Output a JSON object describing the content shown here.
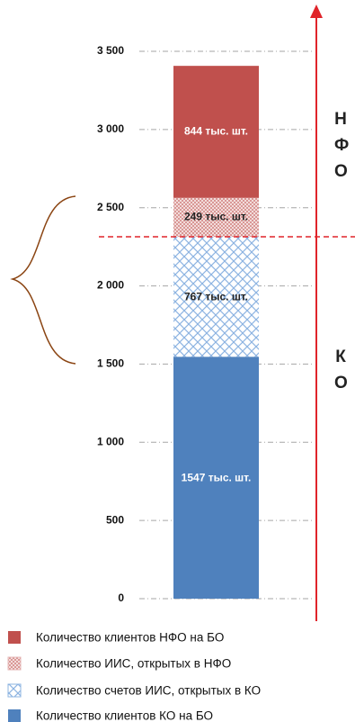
{
  "chart_data": {
    "type": "stacked_bar",
    "categories": [
      null
    ],
    "series": [
      {
        "name": "Количество клиентов КО на БО",
        "color": "#4f81bd",
        "pattern": "solid",
        "values": [
          1547
        ],
        "value_labels": [
          "1547 тыс. шт."
        ]
      },
      {
        "name": "Количество счетов ИИС, открытых в КО",
        "color": "#8db4e2",
        "pattern": "cross",
        "values": [
          767
        ],
        "value_labels": [
          "767 тыс. шт."
        ]
      },
      {
        "name": "Количество ИИС, открытых в НФО",
        "color": "#e6b9b8",
        "pattern": "dots",
        "values": [
          249
        ],
        "value_labels": [
          "249 тыс. шт."
        ]
      },
      {
        "name": "Количество клиентов НФО на БО",
        "color": "#c0504d",
        "pattern": "solid",
        "values": [
          844
        ],
        "value_labels": [
          "844 тыс. шт."
        ]
      }
    ],
    "ylim": [
      0,
      3500
    ],
    "yticks": [
      0,
      500,
      {
        "value": 1000,
        "label": "1 000"
      },
      {
        "value": 1500,
        "label": "1 500"
      },
      {
        "value": 2000,
        "label": "2 000"
      },
      {
        "value": 2500,
        "label": "2 500"
      },
      {
        "value": 3000,
        "label": "3 000"
      },
      {
        "value": 3500,
        "label": "3 500"
      }
    ],
    "grid": true,
    "annotations": [
      "НФО",
      "КО"
    ]
  }
}
